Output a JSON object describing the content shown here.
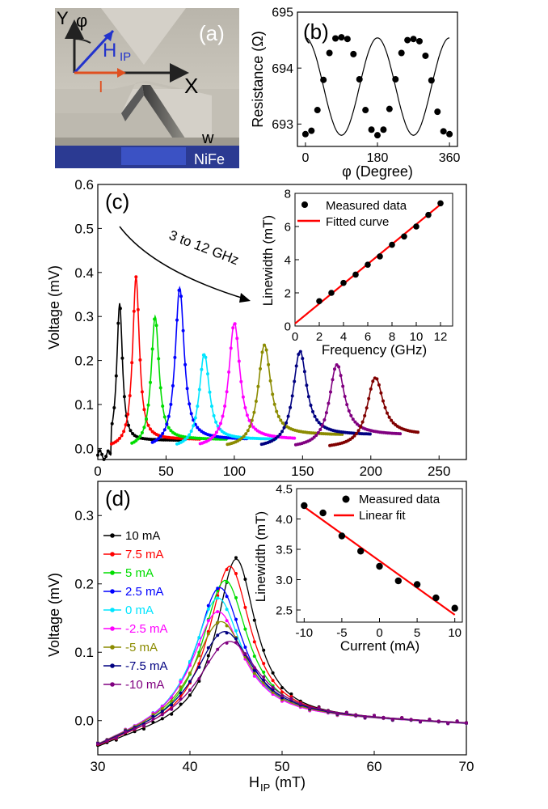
{
  "figure": {
    "panels": [
      {
        "label": "(a)",
        "schematic": {
          "axis_x": "X",
          "axis_y": "Y",
          "angle": "φ",
          "field_main": "H",
          "field_sub": "IP",
          "current": "I",
          "width": "w",
          "material": "NiFe"
        }
      },
      {
        "label": "(b)",
        "chart_data": {
          "type": "scatter",
          "xlabel": "φ (Degree)",
          "ylabel": "Resistance (Ω)",
          "xlim": [
            -20,
            380
          ],
          "ylim": [
            692.6,
            695.0
          ],
          "xticks": [
            0,
            180,
            360
          ],
          "yticks": [
            693,
            694,
            695
          ],
          "fit_line": true,
          "series": [
            {
              "x": [
                0,
                15,
                30,
                45,
                60,
                75,
                90,
                105,
                120,
                135,
                150,
                165,
                180,
                195,
                210,
                225,
                240,
                255,
                270,
                285,
                300,
                315,
                330,
                345,
                360
              ],
              "y": [
                692.82,
                692.88,
                693.25,
                693.79,
                694.27,
                694.53,
                694.55,
                694.52,
                694.25,
                693.8,
                693.25,
                692.9,
                692.8,
                692.9,
                693.27,
                693.8,
                694.27,
                694.5,
                694.52,
                694.48,
                694.22,
                693.78,
                693.22,
                692.87,
                692.82
              ],
              "color": "#000000"
            }
          ]
        }
      },
      {
        "label": "(c)",
        "chart_data": {
          "type": "line",
          "xlabel": "",
          "ylabel": "Voltage (mV)",
          "xlim": [
            0,
            270
          ],
          "ylim": [
            -0.025,
            0.6
          ],
          "xticks": [
            0,
            50,
            100,
            150,
            200,
            250
          ],
          "yticks": [
            0.0,
            0.1,
            0.2,
            0.3,
            0.4,
            0.5,
            0.6
          ],
          "annotation": "3 to 12 GHz",
          "series": [
            {
              "freq_ghz": 3,
              "x_start": 0,
              "x_end": 62,
              "peak_x": 16,
              "peak_y": 0.33,
              "width": 2.5,
              "tail": 0.018,
              "color": "#000000"
            },
            {
              "freq_ghz": 4,
              "x_start": 10,
              "x_end": 75,
              "peak_x": 28,
              "peak_y": 0.39,
              "width": 3.0,
              "tail": 0.02,
              "color": "#ff0000"
            },
            {
              "freq_ghz": 5,
              "x_start": 25,
              "x_end": 95,
              "peak_x": 42,
              "peak_y": 0.3,
              "width": 3.5,
              "tail": 0.02,
              "color": "#00dd00"
            },
            {
              "freq_ghz": 6,
              "x_start": 40,
              "x_end": 110,
              "peak_x": 60,
              "peak_y": 0.365,
              "width": 4.0,
              "tail": 0.02,
              "color": "#0000ff"
            },
            {
              "freq_ghz": 7,
              "x_start": 58,
              "x_end": 130,
              "peak_x": 78,
              "peak_y": 0.215,
              "width": 4.5,
              "tail": 0.02,
              "color": "#00e5ff"
            },
            {
              "freq_ghz": 8,
              "x_start": 75,
              "x_end": 145,
              "peak_x": 100,
              "peak_y": 0.285,
              "width": 5.0,
              "tail": 0.02,
              "color": "#ff00ff"
            },
            {
              "freq_ghz": 9,
              "x_start": 95,
              "x_end": 180,
              "peak_x": 122,
              "peak_y": 0.235,
              "width": 5.5,
              "tail": 0.03,
              "color": "#8b8b00"
            },
            {
              "freq_ghz": 10,
              "x_start": 120,
              "x_end": 200,
              "peak_x": 148,
              "peak_y": 0.22,
              "width": 6.0,
              "tail": 0.03,
              "color": "#000080"
            },
            {
              "freq_ghz": 11,
              "x_start": 145,
              "x_end": 222,
              "peak_x": 175,
              "peak_y": 0.19,
              "width": 6.5,
              "tail": 0.03,
              "color": "#800080"
            },
            {
              "freq_ghz": 12,
              "x_start": 170,
              "x_end": 235,
              "peak_x": 203,
              "peak_y": 0.16,
              "width": 7.0,
              "tail": 0.03,
              "color": "#800000"
            }
          ],
          "inset": {
            "type": "scatter",
            "xlabel": "Frequency (GHz)",
            "ylabel": "Linewidth (mT)",
            "xlim": [
              0,
              13
            ],
            "ylim": [
              0,
              8
            ],
            "xticks": [
              0,
              2,
              4,
              6,
              8,
              10,
              12
            ],
            "yticks": [
              0,
              2,
              4,
              6,
              8
            ],
            "legend": [
              "Measured data",
              "Fitted curve"
            ],
            "x": [
              2,
              3,
              4,
              5,
              6,
              7,
              8,
              9,
              10,
              11,
              12
            ],
            "y": [
              1.5,
              2.0,
              2.6,
              3.1,
              3.7,
              4.2,
              4.9,
              5.4,
              6.0,
              6.7,
              7.4
            ],
            "fit": [
              [
                0,
                0.15
              ],
              [
                12.2,
                7.45
              ]
            ]
          }
        }
      },
      {
        "label": "(d)",
        "chart_data": {
          "type": "line",
          "xlabel": "H",
          "xlabel_sub": "IP",
          "xlabel_unit": "(mT)",
          "ylabel": "Voltage (mV)",
          "xlim": [
            30,
            70
          ],
          "ylim": [
            -0.05,
            0.35
          ],
          "xticks": [
            30,
            40,
            50,
            60,
            70
          ],
          "yticks": [
            0.0,
            0.1,
            0.2,
            0.3
          ],
          "series": [
            {
              "name": "10 mA",
              "h0": 45.0,
              "peak": 0.245,
              "width": 2.6,
              "color": "#000000"
            },
            {
              "name": "7.5 mA",
              "h0": 44.3,
              "peak": 0.235,
              "width": 2.8,
              "color": "#ff0000"
            },
            {
              "name": "5 mA",
              "h0": 43.8,
              "peak": 0.215,
              "width": 3.0,
              "color": "#00dd00"
            },
            {
              "name": "2.5 mA",
              "h0": 43.2,
              "peak": 0.205,
              "width": 3.1,
              "color": "#0000ff"
            },
            {
              "name": "0 mA",
              "h0": 43.0,
              "peak": 0.19,
              "width": 3.2,
              "color": "#00e5ff"
            },
            {
              "name": "-2.5 mA",
              "h0": 43.0,
              "peak": 0.17,
              "width": 3.4,
              "color": "#ff00ff"
            },
            {
              "name": "-5 mA",
              "h0": 43.3,
              "peak": 0.155,
              "width": 3.6,
              "color": "#8b8b00"
            },
            {
              "name": "-7.5 mA",
              "h0": 43.7,
              "peak": 0.14,
              "width": 3.8,
              "color": "#000080"
            },
            {
              "name": "-10 mA",
              "h0": 44.2,
              "peak": 0.125,
              "width": 4.0,
              "color": "#800080"
            }
          ],
          "inset": {
            "type": "scatter",
            "xlabel": "Current (mA)",
            "ylabel": "Linewidth (mT)",
            "xlim": [
              -11,
              11
            ],
            "ylim": [
              2.3,
              4.5
            ],
            "xticks": [
              -10,
              -5,
              0,
              5,
              10
            ],
            "yticks": [
              2.5,
              3.0,
              3.5,
              4.0,
              4.5
            ],
            "legend": [
              "Measured data",
              "Linear fit"
            ],
            "x": [
              -10,
              -7.5,
              -5,
              -2.5,
              0,
              2.5,
              5,
              7.5,
              10
            ],
            "y": [
              4.22,
              4.1,
              3.72,
              3.47,
              3.22,
              2.98,
              2.92,
              2.7,
              2.53
            ],
            "fit": [
              [
                -10,
                4.2
              ],
              [
                10,
                2.42
              ]
            ]
          }
        }
      }
    ]
  }
}
